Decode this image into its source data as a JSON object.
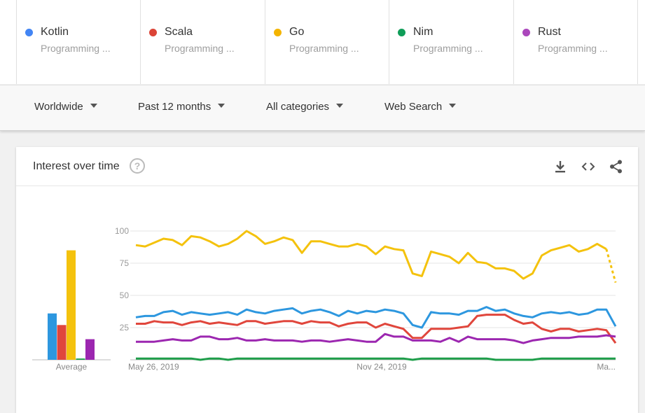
{
  "terms": [
    {
      "name": "Kotlin",
      "sub": "Programming ...",
      "color": "#4285f4"
    },
    {
      "name": "Scala",
      "sub": "Programming ...",
      "color": "#db4437"
    },
    {
      "name": "Go",
      "sub": "Programming ...",
      "color": "#f4b400"
    },
    {
      "name": "Nim",
      "sub": "Programming ...",
      "color": "#0f9d58"
    },
    {
      "name": "Rust",
      "sub": "Programming ...",
      "color": "#ab47bc"
    }
  ],
  "filters": {
    "region": "Worldwide",
    "time": "Past 12 months",
    "category": "All categories",
    "search_type": "Web Search"
  },
  "card": {
    "title": "Interest over time",
    "help": "?",
    "download_icon": "download-icon",
    "embed_icon": "embed-code-icon",
    "share_icon": "share-icon"
  },
  "chart_data": {
    "type": "line",
    "title": "Interest over time",
    "ylim": [
      0,
      100
    ],
    "yticks": [
      100,
      75,
      50,
      25
    ],
    "x_tick_labels": [
      "May 26, 2019",
      "Nov 24, 2019",
      "Ma..."
    ],
    "grid": true,
    "average_bars": {
      "label": "Average",
      "values": [
        {
          "name": "Kotlin",
          "value": 36
        },
        {
          "name": "Scala",
          "value": 27
        },
        {
          "name": "Go",
          "value": 85
        },
        {
          "name": "Nim",
          "value": 1
        },
        {
          "name": "Rust",
          "value": 16
        }
      ]
    },
    "series": [
      {
        "name": "Go",
        "color": "#f4c20d",
        "partial_last": true,
        "values": [
          89,
          88,
          91,
          94,
          93,
          89,
          96,
          95,
          92,
          88,
          90,
          94,
          100,
          96,
          90,
          92,
          95,
          93,
          83,
          92,
          92,
          90,
          88,
          88,
          90,
          88,
          82,
          88,
          86,
          85,
          67,
          65,
          84,
          82,
          80,
          75,
          83,
          76,
          75,
          71,
          71,
          69,
          63,
          67,
          81,
          85,
          87,
          89,
          84,
          86,
          90,
          86,
          60
        ]
      },
      {
        "name": "Kotlin",
        "color": "#2d97df",
        "values": [
          33,
          34,
          34,
          37,
          38,
          35,
          37,
          36,
          35,
          36,
          37,
          35,
          39,
          37,
          36,
          38,
          39,
          40,
          36,
          38,
          39,
          37,
          34,
          38,
          36,
          38,
          37,
          39,
          38,
          36,
          27,
          25,
          37,
          36,
          36,
          35,
          38,
          38,
          41,
          38,
          39,
          36,
          34,
          33,
          36,
          37,
          36,
          37,
          35,
          36,
          39,
          39,
          26
        ]
      },
      {
        "name": "Scala",
        "color": "#e0463c",
        "values": [
          28,
          28,
          30,
          29,
          29,
          27,
          29,
          30,
          28,
          29,
          28,
          27,
          30,
          30,
          28,
          29,
          30,
          30,
          28,
          30,
          29,
          29,
          26,
          28,
          29,
          29,
          25,
          28,
          26,
          24,
          17,
          17,
          24,
          24,
          24,
          25,
          26,
          34,
          35,
          35,
          35,
          31,
          28,
          29,
          24,
          22,
          24,
          24,
          22,
          23,
          24,
          23,
          13
        ]
      },
      {
        "name": "Rust",
        "color": "#9c27b0",
        "values": [
          14,
          14,
          14,
          15,
          16,
          15,
          15,
          18,
          18,
          16,
          16,
          17,
          15,
          15,
          16,
          15,
          15,
          15,
          14,
          15,
          15,
          14,
          15,
          16,
          15,
          14,
          14,
          20,
          18,
          18,
          15,
          15,
          15,
          14,
          17,
          14,
          18,
          16,
          16,
          16,
          16,
          15,
          13,
          15,
          16,
          17,
          17,
          17,
          18,
          18,
          18,
          19,
          18
        ]
      },
      {
        "name": "Nim",
        "color": "#1e9e4a",
        "values": [
          1,
          1,
          1,
          1,
          1,
          1,
          1,
          0,
          1,
          1,
          0,
          1,
          1,
          1,
          1,
          1,
          1,
          1,
          1,
          1,
          1,
          1,
          1,
          1,
          1,
          1,
          1,
          1,
          1,
          1,
          0,
          1,
          1,
          1,
          1,
          1,
          1,
          1,
          1,
          0,
          0,
          0,
          0,
          0,
          1,
          1,
          1,
          1,
          1,
          1,
          1,
          1,
          1
        ]
      }
    ]
  }
}
